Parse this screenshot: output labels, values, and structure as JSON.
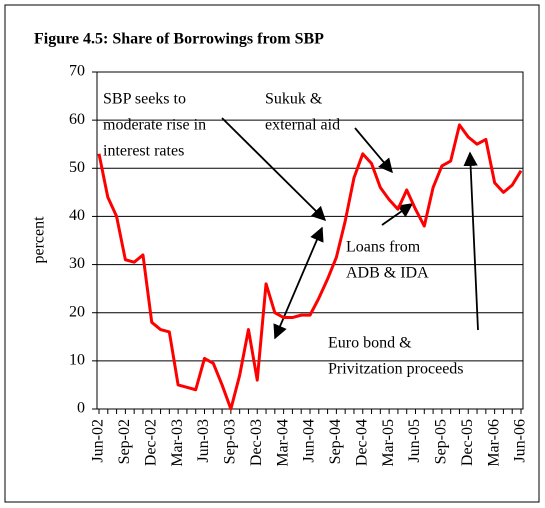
{
  "chart_data": {
    "type": "line",
    "title": "Figure 4.5: Share of Borrowings from SBP",
    "y_label": "percent",
    "categories": [
      "Jun-02",
      null,
      null,
      "Sep-02",
      null,
      null,
      "Dec-02",
      null,
      null,
      "Mar-03",
      null,
      null,
      "Jun-03",
      null,
      null,
      "Sep-03",
      null,
      null,
      "Dec-03",
      null,
      null,
      "Mar-04",
      null,
      null,
      "Jun-04",
      null,
      null,
      "Sep-04",
      null,
      null,
      "Dec-04",
      null,
      null,
      "Mar-05",
      null,
      null,
      "Jun-05",
      null,
      null,
      "Sep-05",
      null,
      null,
      "Dec-05",
      null,
      null,
      "Mar-06",
      null,
      null,
      "Jun-06"
    ],
    "series": [
      {
        "name": "Share of Borrowings from SBP",
        "color": "#ff0000",
        "values": [
          53,
          44,
          40,
          31,
          30.5,
          32,
          18,
          16.5,
          16,
          5,
          4.5,
          4,
          10.5,
          9.5,
          5,
          0,
          7,
          16.5,
          6,
          26,
          20,
          19,
          19,
          19.5,
          19.5,
          23,
          27,
          31.5,
          39,
          48,
          53,
          51,
          46,
          43.5,
          41.5,
          45.5,
          41.5,
          38,
          46,
          50.5,
          51.5,
          59,
          56.5,
          55,
          56,
          47,
          45,
          46.5,
          49.5
        ]
      }
    ],
    "ylim": [
      0,
      70
    ],
    "yticks": [
      0,
      10,
      20,
      30,
      40,
      50,
      60,
      70
    ],
    "grid": true,
    "annotations": [
      {
        "lines": [
          "SBP seeks to",
          "moderate rise in",
          "interest rates"
        ]
      },
      {
        "lines": [
          "Sukuk &",
          "external aid"
        ]
      },
      {
        "lines": [
          "Loans from",
          "ADB & IDA"
        ]
      },
      {
        "lines": [
          "Euro bond &",
          "Privitzation proceeds"
        ]
      }
    ]
  }
}
